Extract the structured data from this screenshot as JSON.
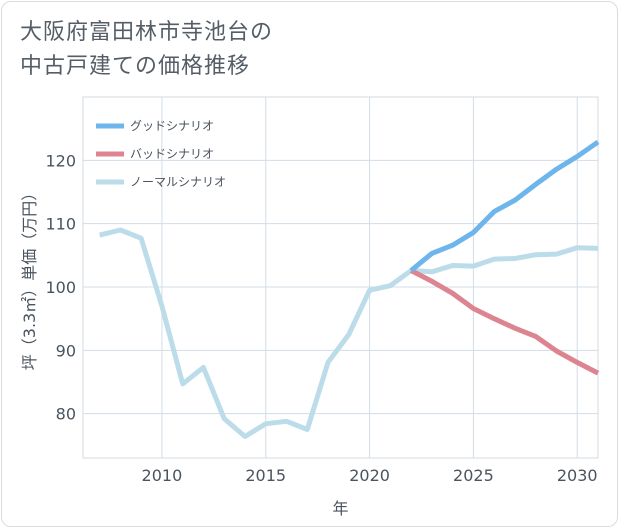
{
  "title": {
    "line1": "大阪府富田林市寺池台の",
    "line2": "中古戸建ての価格推移"
  },
  "chart_data": {
    "type": "line",
    "title": "大阪府富田林市寺池台の中古戸建ての価格推移",
    "xlabel": "年",
    "ylabel": "坪（3.3㎡）単価（万円）",
    "xlim": [
      2006.2,
      2031
    ],
    "ylim": [
      73,
      130
    ],
    "xticks": [
      2010,
      2015,
      2020,
      2025,
      2030
    ],
    "yticks": [
      80,
      90,
      100,
      110,
      120
    ],
    "grid": true,
    "legend_position": "top-right",
    "series": [
      {
        "name": "ノーマルシナリオ",
        "color": "#bcdcea",
        "x": [
          2007,
          2008,
          2009,
          2010,
          2011,
          2012,
          2013,
          2014,
          2015,
          2016,
          2017,
          2018,
          2019,
          2020,
          2021,
          2022,
          2023,
          2024,
          2025,
          2026,
          2027,
          2028,
          2029,
          2030,
          2031
        ],
        "values": [
          108.2,
          109.0,
          107.7,
          97.0,
          84.7,
          87.3,
          79.2,
          76.4,
          78.4,
          78.8,
          77.5,
          88.1,
          92.5,
          99.5,
          100.2,
          102.6,
          102.4,
          103.4,
          103.3,
          104.4,
          104.5,
          105.1,
          105.2,
          106.2,
          106.1
        ]
      },
      {
        "name": "グッドシナリオ",
        "color": "#6db5ea",
        "x": [
          2022,
          2023,
          2024,
          2025,
          2026,
          2027,
          2028,
          2029,
          2030,
          2031
        ],
        "values": [
          102.6,
          105.3,
          106.6,
          108.6,
          111.9,
          113.7,
          116.2,
          118.6,
          120.6,
          122.9
        ]
      },
      {
        "name": "バッドシナリオ",
        "color": "#dc8590",
        "x": [
          2022,
          2023,
          2024,
          2025,
          2026,
          2027,
          2028,
          2029,
          2030,
          2031
        ],
        "values": [
          102.6,
          100.9,
          99.0,
          96.6,
          95.0,
          93.5,
          92.2,
          89.9,
          88.1,
          86.4
        ]
      }
    ],
    "legend": [
      "グッドシナリオ",
      "バッドシナリオ",
      "ノーマルシナリオ"
    ]
  }
}
